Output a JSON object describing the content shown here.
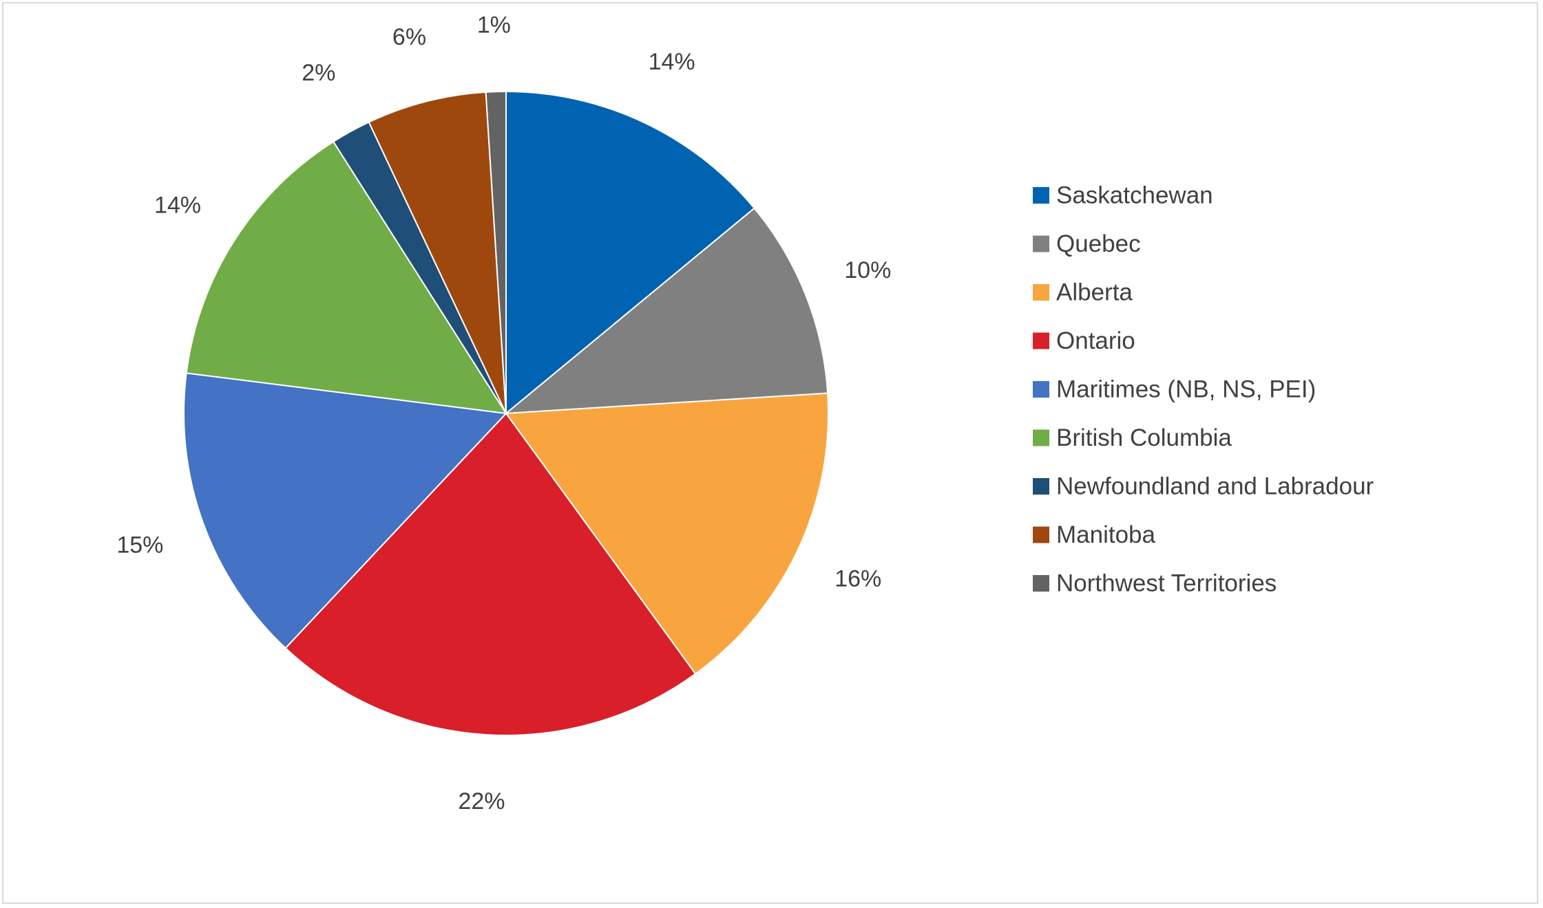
{
  "chart_data": {
    "type": "pie",
    "title": "",
    "legend_position": "right",
    "start_angle_deg": 0,
    "direction": "clockwise",
    "categories": [
      "Saskatchewan",
      "Quebec",
      "Alberta",
      "Ontario",
      "Maritimes (NB, NS, PEI)",
      "British Columbia",
      "Newfoundland and Labradour",
      "Manitoba",
      "Northwest Territories"
    ],
    "values": [
      14,
      10,
      16,
      22,
      15,
      14,
      2,
      6,
      1
    ],
    "value_labels": [
      "14%",
      "10%",
      "16%",
      "22%",
      "15%",
      "14%",
      "2%",
      "6%",
      "1%"
    ],
    "colors": [
      "#0063b1",
      "#808080",
      "#f9a53f",
      "#d81f2a",
      "#4472c4",
      "#70ad47",
      "#1f4e79",
      "#9e480e",
      "#636363"
    ]
  }
}
